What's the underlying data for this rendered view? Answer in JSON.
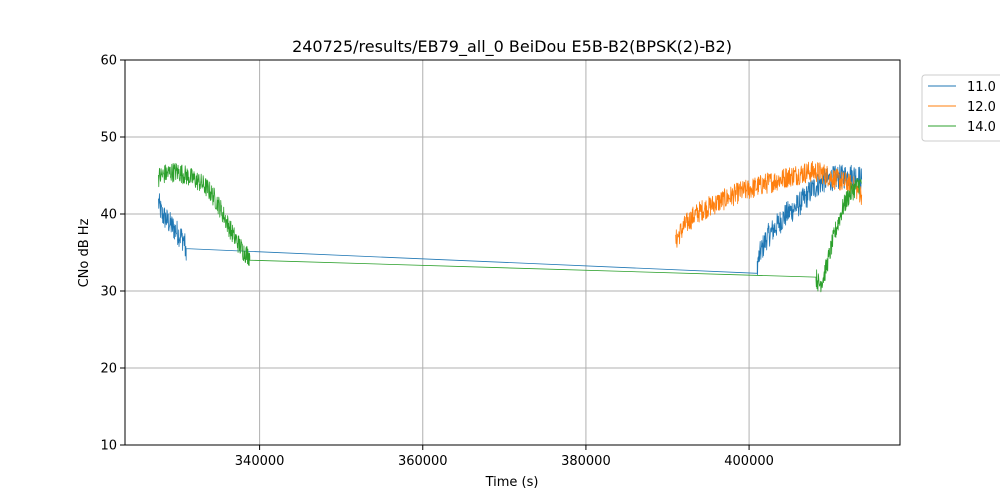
{
  "chart_data": {
    "type": "line",
    "title": "240725/results/EB79_all_0 BeiDou E5B-B2(BPSK(2)-B2)",
    "xlabel": "Time (s)",
    "ylabel": "CNo dB Hz",
    "xlim": [
      323500,
      418500
    ],
    "ylim": [
      10,
      60
    ],
    "xticks": [
      340000,
      360000,
      380000,
      400000
    ],
    "xtick_labels": [
      "340000",
      "360000",
      "380000",
      "400000"
    ],
    "yticks": [
      10,
      20,
      30,
      40,
      50,
      60
    ],
    "ytick_labels": [
      "10",
      "20",
      "30",
      "40",
      "50",
      "60"
    ],
    "grid": true,
    "legend": "outside-top-right",
    "series": [
      {
        "name": "11.0",
        "color": "#1f77b4",
        "noise": 1.6,
        "x": [
          327600,
          328000,
          328400,
          328800,
          329200,
          329600,
          330000,
          330400,
          330800,
          331000,
          331000,
          401000,
          401000,
          401400,
          401800,
          402200,
          402600,
          403000,
          403400,
          403800,
          404200,
          404600,
          405000,
          405400,
          405800,
          406200,
          406600,
          407000,
          407400,
          407800,
          408200,
          408600,
          409000,
          409400,
          409800,
          410200,
          410600,
          411000,
          411400,
          411800,
          412200,
          412600,
          413000,
          413400,
          413800
        ],
        "y": [
          41.5,
          40.0,
          39.5,
          39.0,
          38.5,
          38.0,
          37.5,
          37.0,
          36.5,
          34.0,
          35.5,
          32.3,
          33.5,
          35.0,
          36.0,
          37.0,
          37.5,
          38.0,
          38.5,
          39.0,
          39.5,
          40.0,
          40.3,
          40.6,
          41.0,
          41.3,
          41.8,
          42.2,
          42.8,
          43.3,
          43.6,
          44.0,
          44.2,
          44.4,
          44.5,
          44.6,
          44.7,
          44.8,
          44.8,
          44.9,
          45.0,
          45.0,
          45.0,
          44.8,
          44.5
        ]
      },
      {
        "name": "12.0",
        "color": "#ff7f0e",
        "noise": 1.4,
        "x": [
          391000,
          391400,
          391800,
          392200,
          392600,
          393000,
          393400,
          393800,
          394200,
          394600,
          395000,
          395400,
          395800,
          396200,
          396600,
          397000,
          397400,
          397800,
          398200,
          398600,
          399000,
          399400,
          399800,
          400200,
          400600,
          401000,
          401400,
          401800,
          402200,
          402600,
          403000,
          403400,
          403800,
          404200,
          404600,
          405000,
          405400,
          405800,
          406200,
          406600,
          407000,
          407400,
          407800,
          408200,
          408600,
          409000,
          409400,
          409800,
          410200,
          410600,
          411000,
          411400,
          411800,
          412200,
          412600,
          413000,
          413400,
          413800
        ],
        "y": [
          36.5,
          37.3,
          38.0,
          38.6,
          39.1,
          39.5,
          39.9,
          40.2,
          40.5,
          40.7,
          40.9,
          41.1,
          41.3,
          41.5,
          41.7,
          41.9,
          42.1,
          42.3,
          42.5,
          42.7,
          42.9,
          43.0,
          43.1,
          43.3,
          43.4,
          43.6,
          43.7,
          43.9,
          44.0,
          44.1,
          44.2,
          44.4,
          44.5,
          44.6,
          44.8,
          44.9,
          45.0,
          45.1,
          45.2,
          45.3,
          45.4,
          45.5,
          45.5,
          45.5,
          45.4,
          45.3,
          45.1,
          44.9,
          44.7,
          44.5,
          44.4,
          44.2,
          44.1,
          43.9,
          43.7,
          43.4,
          43.0,
          42.5
        ]
      },
      {
        "name": "14.0",
        "color": "#2ca02c",
        "noise": 1.3,
        "x": [
          327600,
          328000,
          328400,
          328800,
          329200,
          329600,
          330000,
          330400,
          330800,
          331200,
          331600,
          332000,
          332400,
          332800,
          333200,
          333600,
          334000,
          334400,
          334800,
          335200,
          335600,
          336000,
          336400,
          336800,
          337200,
          337600,
          338000,
          338400,
          338800,
          338800,
          408200,
          408200,
          408600,
          409000,
          409400,
          409800,
          410200,
          410600,
          411000,
          411400,
          411800,
          412200,
          412600,
          413000,
          413400,
          413800
        ],
        "y": [
          44.8,
          45.0,
          45.2,
          45.3,
          45.4,
          45.5,
          45.4,
          45.3,
          45.1,
          44.9,
          44.7,
          44.5,
          44.3,
          44.0,
          43.7,
          43.3,
          42.8,
          42.2,
          41.5,
          40.7,
          39.8,
          38.9,
          38.0,
          37.2,
          36.5,
          35.8,
          35.2,
          34.8,
          34.5,
          34.0,
          31.8,
          31.8,
          30.8,
          31.5,
          32.8,
          34.5,
          36.2,
          37.8,
          39.2,
          40.5,
          41.5,
          42.3,
          42.9,
          43.4,
          43.8,
          44.0
        ]
      }
    ]
  }
}
